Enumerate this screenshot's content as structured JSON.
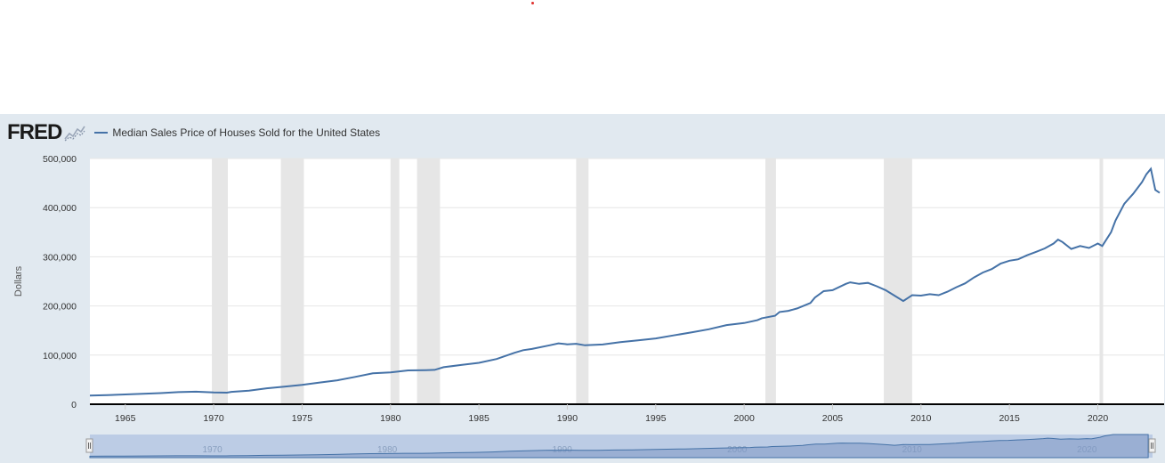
{
  "header": {
    "logo": "FRED",
    "logo_icon": "line-chart-icon"
  },
  "colors": {
    "series": "#4572a7",
    "recession": "#e6e6e6",
    "panel_bg": "#e1e9f0",
    "navigator_fill": "#bccce5"
  },
  "chart_data": {
    "type": "line",
    "ylabel": "Dollars",
    "xlim": [
      1963.0,
      2023.75
    ],
    "ylim": [
      0,
      500000
    ],
    "yticks": [
      "500,000",
      "400,000",
      "300,000",
      "200,000",
      "100,000",
      "0"
    ],
    "xticks": [
      "1965",
      "1970",
      "1975",
      "1980",
      "1985",
      "1990",
      "1995",
      "2000",
      "2005",
      "2010",
      "2015",
      "2020"
    ],
    "grid": true,
    "legend_position": "top-left",
    "series": [
      {
        "name": "Median Sales Price of Houses Sold for the United States",
        "x": [
          1963.0,
          1964.0,
          1965.0,
          1966.0,
          1967.0,
          1968.0,
          1969.0,
          1970.0,
          1970.75,
          1971.0,
          1972.0,
          1973.0,
          1974.0,
          1975.0,
          1976.0,
          1977.0,
          1978.0,
          1979.0,
          1980.0,
          1981.0,
          1982.0,
          1982.5,
          1983.0,
          1984.0,
          1985.0,
          1986.0,
          1987.0,
          1987.5,
          1988.0,
          1989.0,
          1989.5,
          1990.0,
          1990.5,
          1991.0,
          1992.0,
          1993.0,
          1994.0,
          1995.0,
          1996.0,
          1997.0,
          1998.0,
          1999.0,
          2000.0,
          2000.75,
          2001.0,
          2001.75,
          2002.0,
          2002.5,
          2003.0,
          2003.75,
          2004.0,
          2004.5,
          2005.0,
          2005.75,
          2006.0,
          2006.5,
          2007.0,
          2007.5,
          2008.0,
          2008.5,
          2009.0,
          2009.25,
          2009.5,
          2010.0,
          2010.5,
          2011.0,
          2011.5,
          2012.0,
          2012.5,
          2013.0,
          2013.5,
          2014.0,
          2014.5,
          2015.0,
          2015.5,
          2016.0,
          2016.5,
          2017.0,
          2017.5,
          2017.75,
          2018.0,
          2018.5,
          2019.0,
          2019.5,
          2020.0,
          2020.25,
          2020.75,
          2021.0,
          2021.5,
          2022.0,
          2022.5,
          2022.75,
          2023.0,
          2023.25,
          2023.5
        ],
        "values": [
          17800,
          18500,
          20000,
          21400,
          22700,
          24700,
          25600,
          23900,
          23500,
          25200,
          27600,
          32500,
          35900,
          39300,
          44200,
          48800,
          55700,
          62900,
          64600,
          68900,
          69300,
          70000,
          75300,
          79900,
          84300,
          92000,
          104500,
          110000,
          112500,
          120000,
          124000,
          122000,
          123000,
          120000,
          121500,
          126500,
          130000,
          133900,
          140000,
          146000,
          152500,
          161000,
          165300,
          171000,
          175000,
          180000,
          187600,
          190000,
          195000,
          206000,
          217000,
          230000,
          232000,
          245000,
          248000,
          245000,
          247000,
          240000,
          232000,
          221000,
          210000,
          216000,
          222000,
          221000,
          224000,
          222000,
          229000,
          238000,
          246000,
          258000,
          268000,
          275000,
          286000,
          292000,
          295000,
          303000,
          310000,
          317000,
          327000,
          335000,
          330000,
          316000,
          322000,
          318000,
          327000,
          322000,
          350000,
          374000,
          408000,
          428000,
          452000,
          468000,
          479000,
          436000,
          430000
        ]
      }
    ],
    "recessions": [
      [
        1969.9,
        1970.8
      ],
      [
        1973.8,
        1975.1
      ],
      [
        1980.0,
        1980.5
      ],
      [
        1981.5,
        1982.8
      ],
      [
        1990.5,
        1991.2
      ],
      [
        2001.2,
        2001.8
      ],
      [
        2007.9,
        2009.5
      ],
      [
        2020.1,
        2020.3
      ]
    ],
    "navigator_labels": [
      "1970",
      "1980",
      "1990",
      "2000",
      "2010",
      "2020"
    ]
  }
}
